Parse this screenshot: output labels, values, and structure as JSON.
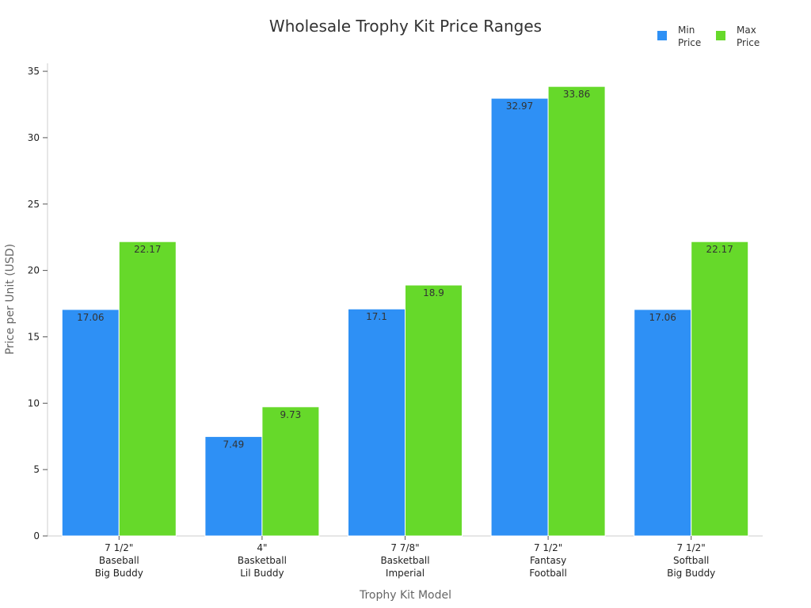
{
  "chart_data": {
    "type": "bar",
    "title": "Wholesale Trophy Kit Price Ranges",
    "xlabel": "Trophy Kit Model",
    "ylabel": "Price per Unit (USD)",
    "categories": [
      [
        "7 1/2\"",
        "Baseball",
        "Big Buddy"
      ],
      [
        "4\"",
        "Basketball",
        "Lil Buddy"
      ],
      [
        "7 7/8\"",
        "Basketball",
        "Imperial"
      ],
      [
        "7 1/2\"",
        "Fantasy",
        "Football"
      ],
      [
        "7 1/2\"",
        "Softball",
        "Big Buddy"
      ]
    ],
    "series": [
      {
        "name": [
          "Min",
          "Price"
        ],
        "values": [
          17.06,
          7.49,
          17.1,
          32.97,
          17.06
        ],
        "color": "#2E90F5"
      },
      {
        "name": [
          "Max",
          "Price"
        ],
        "values": [
          22.17,
          9.73,
          18.9,
          33.86,
          22.17
        ],
        "color": "#66D92A"
      }
    ],
    "yticks": [
      0,
      5,
      10,
      15,
      20,
      25,
      30,
      35
    ],
    "ylim": [
      0,
      35.6
    ],
    "grid": false,
    "legend_position": "top-right"
  }
}
